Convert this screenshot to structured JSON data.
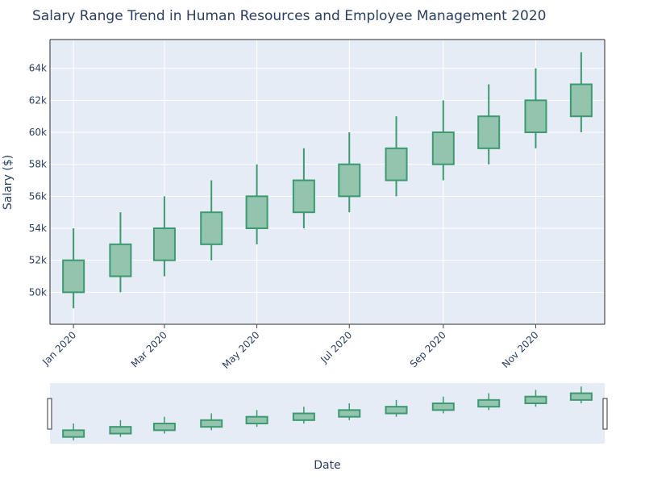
{
  "chart_data": {
    "type": "candlestick",
    "title": "Salary Range Trend in Human Resources and Employee Management 2020",
    "xlabel": "Date",
    "ylabel": "Salary ($)",
    "x": [
      "2020-01-01",
      "2020-02-01",
      "2020-03-01",
      "2020-04-01",
      "2020-05-01",
      "2020-06-01",
      "2020-07-01",
      "2020-08-01",
      "2020-09-01",
      "2020-10-01",
      "2020-11-01",
      "2020-12-01"
    ],
    "open": [
      50000,
      51000,
      52000,
      53000,
      54000,
      55000,
      56000,
      57000,
      58000,
      59000,
      60000,
      61000
    ],
    "high": [
      54000,
      55000,
      56000,
      57000,
      58000,
      59000,
      60000,
      61000,
      62000,
      63000,
      64000,
      65000
    ],
    "low": [
      49000,
      50000,
      51000,
      52000,
      53000,
      54000,
      55000,
      56000,
      57000,
      58000,
      59000,
      60000
    ],
    "close": [
      52000,
      53000,
      54000,
      55000,
      56000,
      57000,
      58000,
      59000,
      60000,
      61000,
      62000,
      63000
    ],
    "ylim": [
      48000,
      65800
    ],
    "y_ticks": [
      {
        "value": 50000,
        "label": "50k"
      },
      {
        "value": 52000,
        "label": "52k"
      },
      {
        "value": 54000,
        "label": "54k"
      },
      {
        "value": 56000,
        "label": "56k"
      },
      {
        "value": 58000,
        "label": "58k"
      },
      {
        "value": 60000,
        "label": "60k"
      },
      {
        "value": 62000,
        "label": "62k"
      },
      {
        "value": 64000,
        "label": "64k"
      }
    ],
    "x_ticks": [
      {
        "value": "2020-01-01",
        "label": "Jan 2020"
      },
      {
        "value": "2020-03-01",
        "label": "Mar 2020"
      },
      {
        "value": "2020-05-01",
        "label": "May 2020"
      },
      {
        "value": "2020-07-01",
        "label": "Jul 2020"
      },
      {
        "value": "2020-09-01",
        "label": "Sep 2020"
      },
      {
        "value": "2020-11-01",
        "label": "Nov 2020"
      }
    ],
    "grid": true,
    "rangeslider": true,
    "colors": {
      "increasing_line": "#3d9970",
      "increasing_fill": "#93c5ae",
      "plot_bg": "#e5ecf6",
      "grid": "#ffffff",
      "text": "#2a3f5f"
    }
  }
}
